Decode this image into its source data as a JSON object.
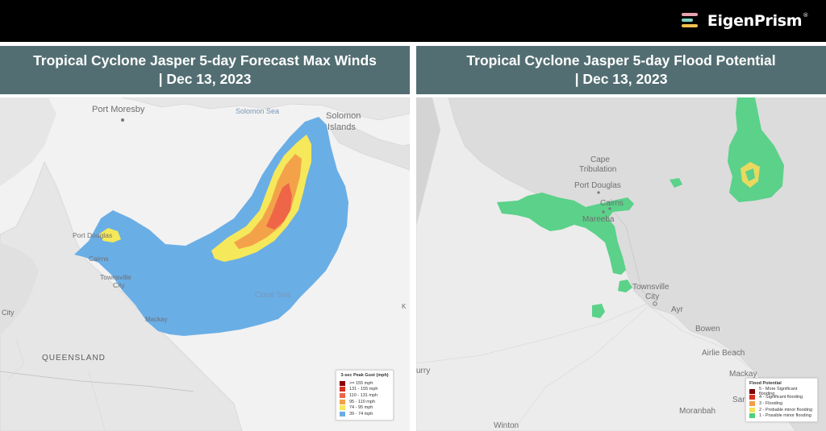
{
  "brand": {
    "name": "EigenPrism",
    "trademark": "®",
    "mark_colors": [
      "#e8a3b0",
      "#7fd1c4",
      "#f2c14e"
    ]
  },
  "panels": [
    {
      "title_line1": "Tropical Cyclone Jasper 5-day Forecast Max Winds",
      "title_line2": "| Dec 13, 2023",
      "places": {
        "port_moresby": "Port Moresby",
        "solomon_sea": "Solomon Sea",
        "solomon_islands_1": "Solomon",
        "solomon_islands_2": "Islands",
        "port_douglas": "Port Douglas",
        "cairns": "Cairns",
        "townsville": "Townsville",
        "city": "City",
        "coral_sea": "Coral Sea",
        "mackay": "Mackay",
        "queensland": "QUEENSLAND",
        "city_edge": "City"
      },
      "legend": {
        "title": "3-sec Peak Gust (mph)",
        "items": [
          {
            "label": ">= 155 mph",
            "color": "#8b0000"
          },
          {
            "label": "131 - 155 mph",
            "color": "#d7301f"
          },
          {
            "label": "110 - 131 mph",
            "color": "#ef6548"
          },
          {
            "label": "95 - 110 mph",
            "color": "#f3a24a"
          },
          {
            "label": "74 - 95 mph",
            "color": "#f5e85a"
          },
          {
            "label": "39 - 74 mph",
            "color": "#6aaee6"
          }
        ]
      }
    },
    {
      "title_line1": "Tropical Cyclone Jasper 5-day Flood Potential",
      "title_line2": "| Dec 13, 2023",
      "places": {
        "cape_tribulation_1": "Cape",
        "cape_tribulation_2": "Tribulation",
        "port_douglas": "Port Douglas",
        "cairns": "Cairns",
        "mareeba": "Mareeba",
        "townsville": "Townsville",
        "city": "City",
        "ayr": "Ayr",
        "bowen": "Bowen",
        "airlie_beach": "Airlie Beach",
        "mackay": "Mackay",
        "sarina": "Sar",
        "moranbah": "Moranbah",
        "winton": "Winton",
        "urry": "urry"
      },
      "legend": {
        "title": "Flood Potential",
        "items": [
          {
            "label": "5 - More Significant flooding",
            "color": "#7f0000"
          },
          {
            "label": "4 - Significant flooding",
            "color": "#d7301f"
          },
          {
            "label": "3 - Flooding",
            "color": "#f39c4a"
          },
          {
            "label": "2 - Probable minor flooding",
            "color": "#f3e25a"
          },
          {
            "label": "1 - Possible minor flooding",
            "color": "#4fcf7c"
          }
        ]
      }
    }
  ],
  "colors": {
    "header_bg": "#000000",
    "title_bar": "#536e72",
    "land": "#e8e8e8",
    "water": "#f3f3f3",
    "wind_blue": "#6aaee6",
    "wind_yellow": "#f5e85a",
    "wind_orange": "#f3a24a",
    "wind_red": "#ef6548",
    "flood_green": "#4fcf7c",
    "flood_yellow": "#e9d95f"
  }
}
